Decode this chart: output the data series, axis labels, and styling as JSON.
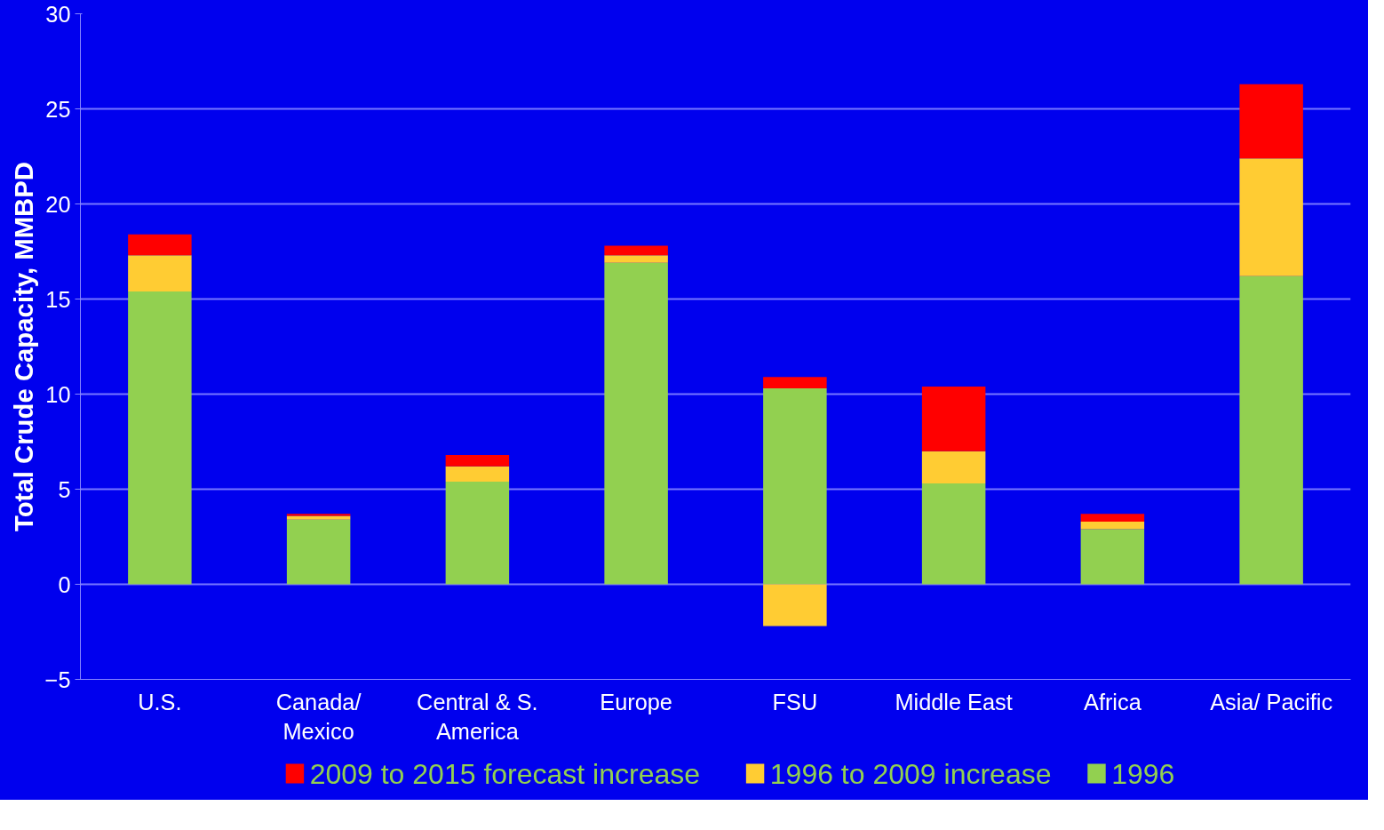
{
  "chart_data": {
    "type": "bar",
    "stacked": true,
    "ylabel": "Total Crude Capacity, MMBPD",
    "categories": [
      "U.S.",
      "Canada/\nMexico",
      "Central & S.\nAmerica",
      "Europe",
      "FSU",
      "Middle East",
      "Africa",
      "Asia/ Pacific"
    ],
    "series": [
      {
        "name": "1996",
        "color": "#92d050",
        "values": [
          15.4,
          3.4,
          5.4,
          16.9,
          10.3,
          5.3,
          2.9,
          16.2
        ]
      },
      {
        "name": "1996 to 2009 increase",
        "color": "#ffcc33",
        "values": [
          1.9,
          0.2,
          0.8,
          0.4,
          -2.2,
          1.7,
          0.4,
          6.2
        ]
      },
      {
        "name": "2009 to 2015 forecast increase",
        "color": "#ff0000",
        "values": [
          1.1,
          0.1,
          0.6,
          0.5,
          0.6,
          3.4,
          0.4,
          3.9
        ]
      }
    ],
    "ylim": [
      -5,
      30
    ],
    "yticks": [
      -5,
      0,
      5,
      10,
      15,
      20,
      25,
      30
    ],
    "grid": "y",
    "legend": "bottom"
  }
}
